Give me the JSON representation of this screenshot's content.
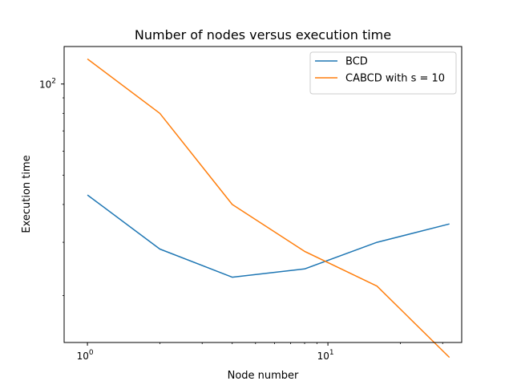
{
  "chart_data": {
    "type": "line",
    "title": "Number of nodes versus execution time",
    "xlabel": "Node number",
    "ylabel": "Execution time",
    "xscale": "log",
    "yscale": "log",
    "xlim": [
      0.8,
      36
    ],
    "ylim": [
      14,
      133
    ],
    "x": [
      1,
      2,
      4,
      8,
      16,
      32
    ],
    "series": [
      {
        "name": "BCD",
        "color": "#1f77b4",
        "values": [
          43,
          28.5,
          23,
          24.5,
          30,
          34.5
        ]
      },
      {
        "name": "CABCD with s = 10",
        "color": "#ff7f0e",
        "values": [
          121,
          80,
          40,
          28,
          21.5,
          12.5
        ]
      }
    ],
    "x_ticks": [
      {
        "value": 1,
        "base": "10",
        "exp": "0"
      },
      {
        "value": 10,
        "base": "10",
        "exp": "1"
      }
    ],
    "y_ticks": [
      {
        "value": 100,
        "base": "10",
        "exp": "2"
      }
    ],
    "legend": {
      "position": "top-right"
    },
    "grid": false
  }
}
